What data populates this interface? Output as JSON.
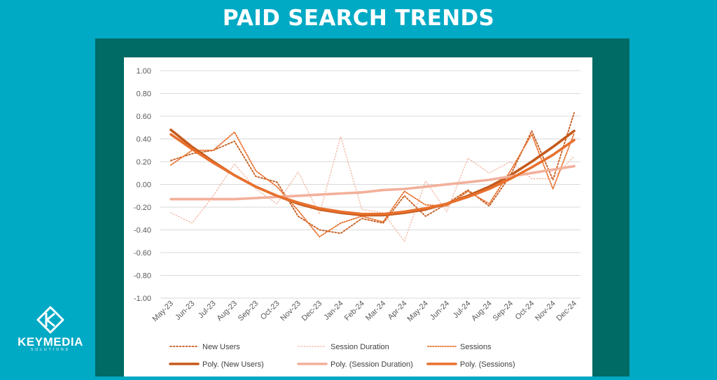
{
  "header": {
    "title": "PAID SEARCH TRENDS"
  },
  "logo": {
    "name": "KEYMEDIA",
    "sub": "SOLUTIONS"
  },
  "colors": {
    "background": "#00a9c4",
    "frame": "#006a64",
    "new_users": "#c55a1c",
    "session_duration": "#f2b09a",
    "sessions": "#e8702d"
  },
  "chart_data": {
    "type": "line",
    "title": "",
    "xlabel": "",
    "ylabel": "",
    "ylim": [
      -1.0,
      1.0
    ],
    "yticks": [
      "1.00",
      "0.80",
      "0.60",
      "0.40",
      "0.20",
      "0.00",
      "-0.20",
      "-0.40",
      "-0.60",
      "-0.80",
      "-1.00"
    ],
    "grid": true,
    "legend_position": "bottom",
    "categories": [
      "May-23",
      "Jun-23",
      "Jul-23",
      "Aug-23",
      "Sep-23",
      "Oct-23",
      "Nov-23",
      "Dec-23",
      "Jan-24",
      "Feb-24",
      "Mar-24",
      "Apr-24",
      "May-24",
      "Jun-24",
      "Jul-24",
      "Aug-24",
      "Sep-24",
      "Oct-24",
      "Nov-24",
      "Dec-24"
    ],
    "series": [
      {
        "name": "New Users",
        "style": "dotted",
        "color": "#c55a1c",
        "values": [
          0.21,
          0.27,
          0.3,
          0.38,
          0.07,
          0.02,
          -0.28,
          -0.4,
          -0.43,
          -0.3,
          -0.34,
          -0.1,
          -0.28,
          -0.17,
          -0.05,
          -0.19,
          0.08,
          0.47,
          0.04,
          0.63
        ]
      },
      {
        "name": "Session Duration",
        "style": "dotted",
        "color": "#f2b09a",
        "values": [
          -0.25,
          -0.34,
          -0.1,
          0.18,
          -0.04,
          -0.17,
          0.11,
          -0.26,
          0.42,
          -0.22,
          -0.25,
          -0.5,
          0.03,
          -0.24,
          0.23,
          0.1,
          0.2,
          0.05,
          0.05,
          0.25
        ]
      },
      {
        "name": "Sessions",
        "style": "dotted",
        "color": "#e8702d",
        "values": [
          0.17,
          0.3,
          0.3,
          0.46,
          0.12,
          -0.02,
          -0.23,
          -0.46,
          -0.34,
          -0.28,
          -0.33,
          -0.06,
          -0.18,
          -0.19,
          -0.06,
          -0.17,
          0.12,
          0.44,
          -0.04,
          0.45
        ]
      },
      {
        "name": "Poly. (New Users)",
        "style": "solid",
        "color": "#c55a1c",
        "values": [
          0.48,
          0.33,
          0.2,
          0.08,
          -0.02,
          -0.1,
          -0.17,
          -0.22,
          -0.25,
          -0.27,
          -0.27,
          -0.25,
          -0.22,
          -0.17,
          -0.1,
          -0.02,
          0.08,
          0.2,
          0.33,
          0.47
        ]
      },
      {
        "name": "Poly. (Session Duration)",
        "style": "solid",
        "color": "#f2b09a",
        "values": [
          -0.13,
          -0.13,
          -0.13,
          -0.13,
          -0.12,
          -0.11,
          -0.1,
          -0.09,
          -0.08,
          -0.07,
          -0.05,
          -0.04,
          -0.02,
          0.0,
          0.02,
          0.04,
          0.07,
          0.1,
          0.13,
          0.16
        ]
      },
      {
        "name": "Poly. (Sessions)",
        "style": "solid",
        "color": "#e8702d",
        "values": [
          0.44,
          0.31,
          0.19,
          0.08,
          -0.02,
          -0.1,
          -0.16,
          -0.21,
          -0.24,
          -0.26,
          -0.26,
          -0.24,
          -0.21,
          -0.17,
          -0.11,
          -0.04,
          0.05,
          0.15,
          0.26,
          0.39
        ]
      }
    ]
  }
}
